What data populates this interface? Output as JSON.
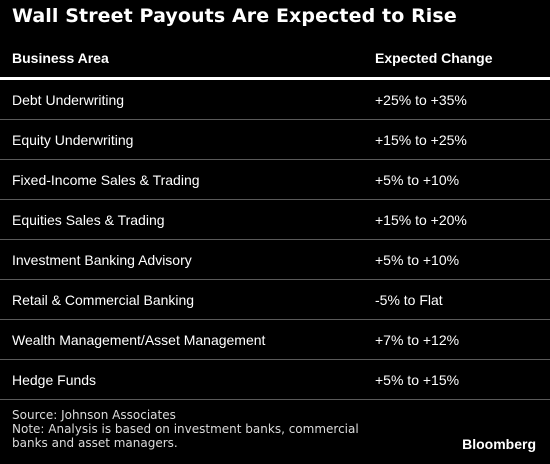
{
  "title": "Wall Street Payouts Are Expected to Rise",
  "table": {
    "headers": [
      "Business Area",
      "Expected Change"
    ],
    "rows": [
      {
        "area": "Debt Underwriting",
        "change": "+25% to +35%"
      },
      {
        "area": "Equity Underwriting",
        "change": "+15% to +25%"
      },
      {
        "area": "Fixed-Income Sales & Trading",
        "change": "+5% to +10%"
      },
      {
        "area": "Equities Sales & Trading",
        "change": "+15% to +20%"
      },
      {
        "area": "Investment Banking Advisory",
        "change": "+5% to +10%"
      },
      {
        "area": "Retail & Commercial Banking",
        "change": "-5% to Flat"
      },
      {
        "area": "Wealth Management/Asset Management",
        "change": "+7% to +12%"
      },
      {
        "area": "Hedge Funds",
        "change": "+5% to +15%"
      }
    ]
  },
  "footer": {
    "source": "Source: Johnson Associates",
    "note_line1": "Note: Analysis is based on investment banks, commercial",
    "note_line2": "banks and asset managers."
  },
  "brand": "Bloomberg",
  "colors": {
    "background": "#000000",
    "text": "#ffffff",
    "divider": "#5a5a5a"
  }
}
